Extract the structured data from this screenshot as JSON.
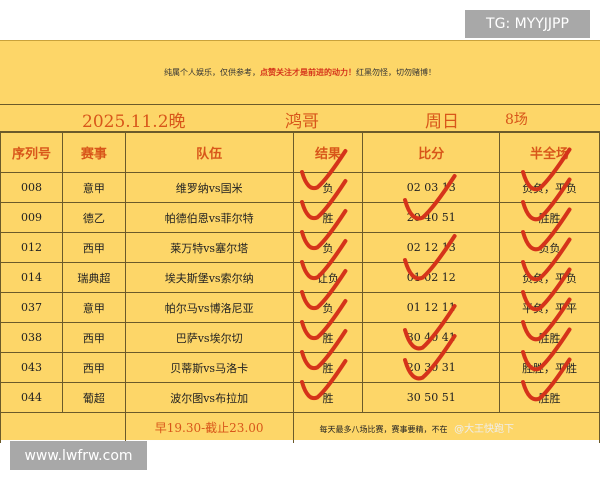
{
  "watermark_top": "TG: MYYJJPP",
  "watermark_bottom": "www.lwfrw.com",
  "notice": {
    "part1": "纯属个人娱乐，仅供参考，",
    "part2": "点赞关注才是前进的动力！",
    "part3": "红黑勿怪，切勿赌博！"
  },
  "title": {
    "date": "2025.11.2晚",
    "author": "鸿哥",
    "weekday": "周日",
    "count": "8场"
  },
  "headers": [
    "序列号",
    "赛事",
    "队伍",
    "结果",
    "比分",
    "半全场"
  ],
  "rows": [
    [
      "008",
      "意甲",
      "维罗纳vs国米",
      "负",
      "02 03 13",
      "负负，平负"
    ],
    [
      "009",
      "德乙",
      "帕德伯恩vs菲尔特",
      "胜",
      "20 40 51",
      "胜胜"
    ],
    [
      "012",
      "西甲",
      "莱万特vs塞尔塔",
      "负",
      "02 12 13",
      "负负"
    ],
    [
      "014",
      "瑞典超",
      "埃夫斯堡vs索尔纳",
      "让负",
      "01 02 12",
      "负负，平负"
    ],
    [
      "037",
      "意甲",
      "帕尔马vs博洛尼亚",
      "负",
      "01 12 11",
      "平负，平平"
    ],
    [
      "038",
      "西甲",
      "巴萨vs埃尔切",
      "胜",
      "30 40 41",
      "胜胜"
    ],
    [
      "043",
      "西甲",
      "贝蒂斯vs马洛卡",
      "胜",
      "20 30 31",
      "胜胜，平胜"
    ],
    [
      "044",
      "葡超",
      "波尔图vs布拉加",
      "胜",
      "30 50 51",
      "胜胜"
    ]
  ],
  "footer": {
    "time": "早19.30-截止23.00",
    "note": "每天最多八场比赛，赛事要精，不在",
    "weibo": "@大王快跑下"
  },
  "colors": {
    "background": "#fdd668",
    "accent": "#d8561a",
    "check": "#d5331a"
  }
}
